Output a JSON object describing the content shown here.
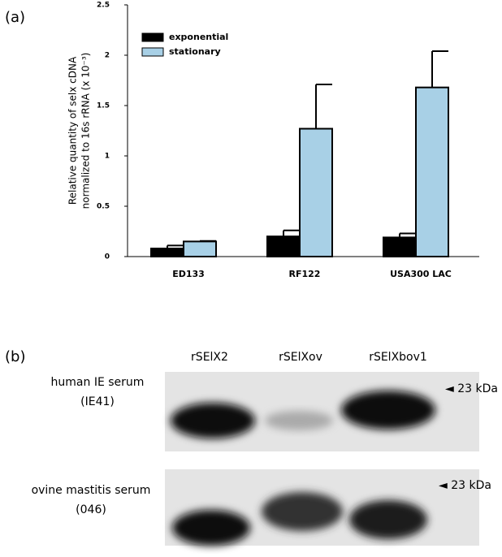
{
  "panel_labels": [
    "(a)",
    "(b)"
  ],
  "chart_data": {
    "type": "bar",
    "y_label": [
      "Relative quantity of selx cDNA",
      "normalized to 16s rRNA (x 10⁻³)"
    ],
    "categories": [
      "ED133",
      "RF122",
      "USA300 LAC"
    ],
    "series": [
      {
        "name": "exponential",
        "color": "#000000",
        "values": [
          0.08,
          0.2,
          0.19
        ],
        "errors": [
          0.03,
          0.06,
          0.04
        ]
      },
      {
        "name": "stationary",
        "color": "#a8d0e6",
        "values": [
          0.15,
          1.27,
          1.68
        ],
        "errors": [
          0.005,
          0.44,
          0.36
        ]
      }
    ],
    "ylim": [
      0,
      2.5
    ],
    "yticks": [
      0,
      0.5,
      1,
      1.5,
      2,
      2.5
    ],
    "legend": "upper-left"
  },
  "blot": {
    "columns": [
      "rSElX2",
      "rSElXov",
      "rSElXbov1"
    ],
    "rows": [
      {
        "label": [
          "human IE serum",
          "(IE41)"
        ],
        "marker": "◄ 23 kDa"
      },
      {
        "label": [
          "ovine mastitis serum",
          "(046)"
        ],
        "marker": "◄ 23 kDa"
      }
    ]
  }
}
